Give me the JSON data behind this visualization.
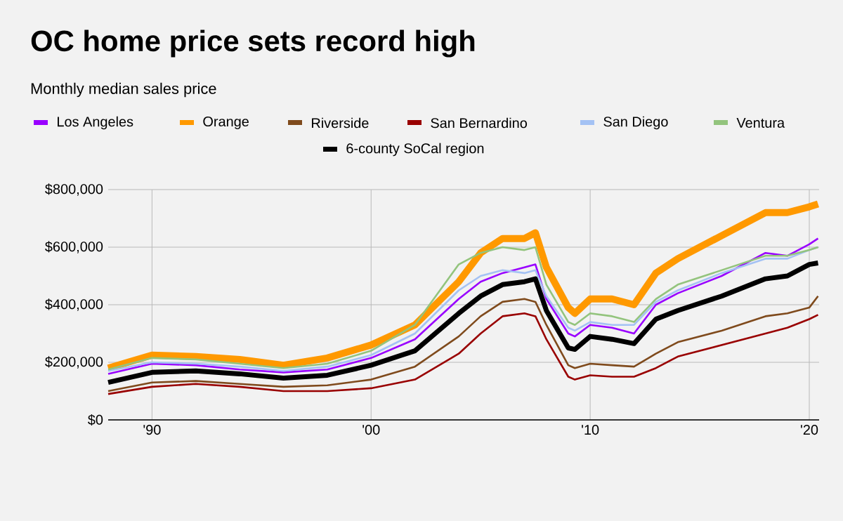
{
  "chart_data": {
    "type": "line",
    "title": "OC home price sets record high",
    "subtitle": "Monthly median sales price",
    "x": [
      1988,
      1990,
      1992,
      1994,
      1996,
      1998,
      2000,
      2002,
      2004,
      2005,
      2006,
      2007,
      2007.5,
      2008,
      2009,
      2009.3,
      2010,
      2011,
      2012,
      2013,
      2014,
      2016,
      2018,
      2019,
      2020,
      2020.4
    ],
    "series": [
      {
        "name": "Los Angeles",
        "color": "#9900ff",
        "values": [
          160000,
          195000,
          190000,
          175000,
          165000,
          175000,
          215000,
          280000,
          420000,
          480000,
          510000,
          530000,
          540000,
          420000,
          300000,
          290000,
          330000,
          320000,
          300000,
          400000,
          440000,
          500000,
          580000,
          570000,
          610000,
          630000
        ]
      },
      {
        "name": "Orange",
        "color": "#ff9900",
        "values": [
          180000,
          225000,
          220000,
          210000,
          190000,
          215000,
          260000,
          330000,
          480000,
          580000,
          630000,
          630000,
          650000,
          530000,
          390000,
          370000,
          420000,
          420000,
          400000,
          510000,
          560000,
          640000,
          720000,
          720000,
          740000,
          750000
        ]
      },
      {
        "name": "Riverside",
        "color": "#7f4a1c",
        "values": [
          100000,
          130000,
          135000,
          125000,
          115000,
          120000,
          140000,
          185000,
          290000,
          360000,
          410000,
          420000,
          410000,
          330000,
          190000,
          180000,
          195000,
          190000,
          185000,
          230000,
          270000,
          310000,
          360000,
          370000,
          390000,
          430000
        ]
      },
      {
        "name": "San Bernardino",
        "color": "#990000",
        "values": [
          90000,
          115000,
          125000,
          115000,
          100000,
          100000,
          110000,
          140000,
          230000,
          300000,
          360000,
          370000,
          360000,
          280000,
          150000,
          140000,
          155000,
          150000,
          150000,
          180000,
          220000,
          260000,
          300000,
          320000,
          350000,
          365000
        ]
      },
      {
        "name": "San Diego",
        "color": "#a4c2f4",
        "values": [
          170000,
          200000,
          195000,
          185000,
          170000,
          185000,
          225000,
          300000,
          450000,
          500000,
          520000,
          510000,
          520000,
          430000,
          320000,
          310000,
          340000,
          330000,
          330000,
          410000,
          450000,
          510000,
          560000,
          560000,
          590000,
          600000
        ]
      },
      {
        "name": "Ventura",
        "color": "#93c47d",
        "values": [
          175000,
          215000,
          210000,
          195000,
          180000,
          195000,
          240000,
          330000,
          540000,
          580000,
          600000,
          590000,
          600000,
          470000,
          340000,
          330000,
          370000,
          360000,
          340000,
          420000,
          470000,
          520000,
          570000,
          570000,
          590000,
          600000
        ]
      },
      {
        "name": "6-county SoCal region",
        "color": "#000000",
        "values": [
          130000,
          165000,
          170000,
          160000,
          145000,
          155000,
          190000,
          240000,
          370000,
          430000,
          470000,
          480000,
          490000,
          380000,
          250000,
          245000,
          290000,
          280000,
          265000,
          350000,
          380000,
          430000,
          490000,
          500000,
          540000,
          545000
        ]
      }
    ],
    "xlim": [
      1988,
      2020.45
    ],
    "xticks": [
      {
        "value": 1990,
        "label": "'90"
      },
      {
        "value": 2000,
        "label": "'00"
      },
      {
        "value": 2010,
        "label": "'10"
      },
      {
        "value": 2020,
        "label": "'20"
      }
    ],
    "ylim": [
      0,
      800000
    ],
    "yticks": [
      {
        "value": 0,
        "label": "$0"
      },
      {
        "value": 200000,
        "label": "$200,000"
      },
      {
        "value": 400000,
        "label": "$400,000"
      },
      {
        "value": 600000,
        "label": "$600,000"
      },
      {
        "value": 800000,
        "label": "$800,000"
      }
    ],
    "grid": true,
    "legend": "top",
    "line_style": "solid"
  }
}
